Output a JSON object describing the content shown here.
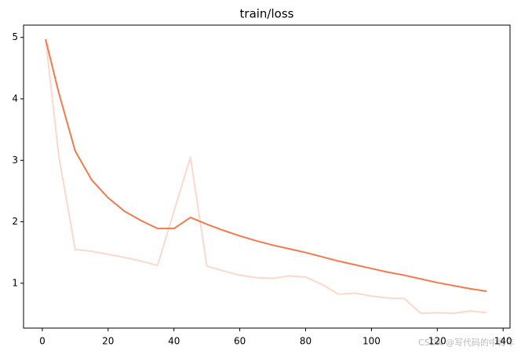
{
  "chart_data": {
    "type": "line",
    "title": "train/loss",
    "x": [
      1,
      5,
      10,
      15,
      20,
      25,
      30,
      35,
      40,
      45,
      50,
      55,
      60,
      65,
      70,
      75,
      80,
      85,
      90,
      95,
      100,
      105,
      110,
      115,
      120,
      125,
      130,
      135
    ],
    "series": [
      {
        "color": "#fdd9cc",
        "values": [
          4.97,
          3.07,
          1.55,
          1.52,
          1.47,
          1.42,
          1.36,
          1.29,
          2.17,
          3.05,
          1.28,
          1.2,
          1.13,
          1.09,
          1.08,
          1.12,
          1.1,
          0.98,
          0.82,
          0.84,
          0.79,
          0.76,
          0.75,
          0.51,
          0.52,
          0.51,
          0.55,
          0.52
        ]
      },
      {
        "color": "#f47a4c",
        "values": [
          4.97,
          4.1,
          3.15,
          2.68,
          2.39,
          2.17,
          2.02,
          1.89,
          1.89,
          2.07,
          1.96,
          1.86,
          1.77,
          1.69,
          1.62,
          1.56,
          1.5,
          1.43,
          1.36,
          1.3,
          1.24,
          1.18,
          1.13,
          1.07,
          1.01,
          0.96,
          0.91,
          0.87
        ]
      }
    ],
    "xlim": [
      -5.7,
      142.1
    ],
    "xticks": [
      0,
      20,
      40,
      60,
      80,
      100,
      120,
      140
    ],
    "ylim": [
      0.27,
      5.2
    ],
    "yticks": [
      1,
      2,
      3,
      4,
      5
    ],
    "grid": false,
    "watermark": "CSDN @写代码的中青年"
  }
}
